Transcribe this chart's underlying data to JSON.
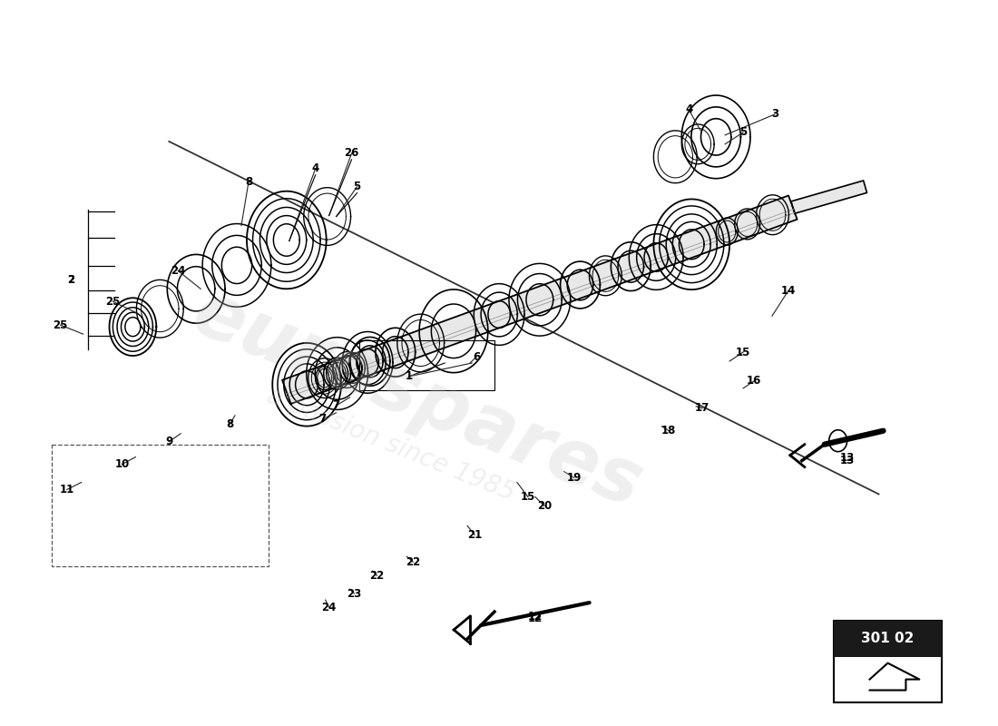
{
  "background_color": "#ffffff",
  "page_code": "301 02",
  "watermark_text": "eurospares",
  "watermark_subtext": "a passion since 1985",
  "fig_width": 11.0,
  "fig_height": 8.0,
  "dpi": 100
}
